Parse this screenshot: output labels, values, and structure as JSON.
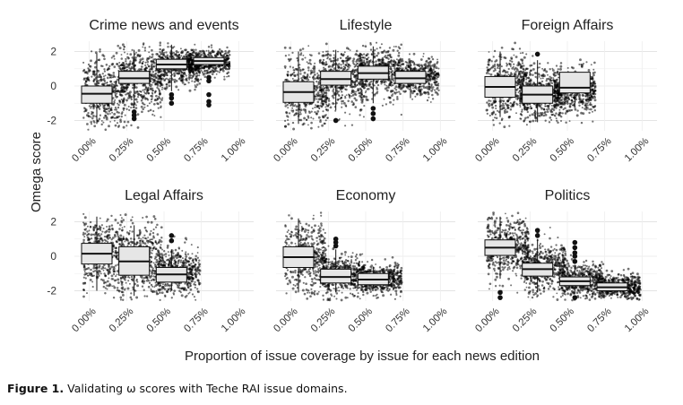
{
  "caption": {
    "label": "Figure 1.",
    "text": "Validating ω scores with Teche RAI issue domains."
  },
  "chart_data": {
    "type": "box",
    "ylabel": "Omega score",
    "xlabel": "Proportion of issue coverage by issue for each news edition",
    "x_ticks": [
      "0.00%",
      "0.25%",
      "0.50%",
      "0.75%",
      "1.00%"
    ],
    "x_tick_values": [
      0.0,
      0.25,
      0.5,
      0.75,
      1.0
    ],
    "y_ticks": [
      2,
      0,
      -2
    ],
    "ylim": [
      -2.6,
      2.6
    ],
    "xlim": [
      -0.1,
      1.1
    ],
    "panels": [
      {
        "title": "Crime news and events",
        "boxes": [
          {
            "x": 0.05,
            "q1": -1.0,
            "median": -0.45,
            "q3": 0.0,
            "whisker_low": -2.2,
            "whisker_high": 1.9,
            "outliers": []
          },
          {
            "x": 0.3,
            "q1": 0.15,
            "median": 0.45,
            "q3": 0.85,
            "whisker_low": -1.3,
            "whisker_high": 2.1,
            "outliers": [
              -1.5,
              -1.7,
              -1.9
            ]
          },
          {
            "x": 0.55,
            "q1": 1.0,
            "median": 1.25,
            "q3": 1.55,
            "whisker_low": -0.3,
            "whisker_high": 2.4,
            "outliers": [
              -0.5,
              -0.7,
              -1.0
            ]
          },
          {
            "x": 0.8,
            "q1": 1.25,
            "median": 1.45,
            "q3": 1.65,
            "whisker_low": 1.0,
            "whisker_high": 2.0,
            "outliers": [
              0.5,
              0.3,
              -0.5,
              -0.9,
              -1.1
            ]
          }
        ],
        "scatter_spread": [
          [
            0.0,
            -0.3,
            1.1
          ],
          [
            0.25,
            0.4,
            0.9
          ],
          [
            0.5,
            1.2,
            0.55
          ],
          [
            0.7,
            1.4,
            0.35
          ]
        ]
      },
      {
        "title": "Lifestyle",
        "boxes": [
          {
            "x": 0.05,
            "q1": -0.95,
            "median": -0.35,
            "q3": 0.25,
            "whisker_low": -2.2,
            "whisker_high": 2.0,
            "outliers": []
          },
          {
            "x": 0.3,
            "q1": 0.05,
            "median": 0.4,
            "q3": 0.85,
            "whisker_low": -1.4,
            "whisker_high": 2.1,
            "outliers": [
              -2.0
            ]
          },
          {
            "x": 0.55,
            "q1": 0.4,
            "median": 0.75,
            "q3": 1.15,
            "whisker_low": -1.0,
            "whisker_high": 2.3,
            "outliers": [
              -1.3,
              -1.6,
              -1.9
            ]
          },
          {
            "x": 0.8,
            "q1": 0.15,
            "median": 0.45,
            "q3": 0.85,
            "whisker_low": -0.7,
            "whisker_high": 1.5,
            "outliers": []
          }
        ],
        "scatter_spread": [
          [
            0.0,
            -0.3,
            1.1
          ],
          [
            0.25,
            0.4,
            0.9
          ],
          [
            0.5,
            0.8,
            0.7
          ],
          [
            0.75,
            0.5,
            0.5
          ]
        ]
      },
      {
        "title": "Foreign Affairs",
        "boxes": [
          {
            "x": 0.05,
            "q1": -0.65,
            "median": -0.05,
            "q3": 0.55,
            "whisker_low": -1.8,
            "whisker_high": 2.0,
            "outliers": []
          },
          {
            "x": 0.3,
            "q1": -1.0,
            "median": -0.5,
            "q3": 0.0,
            "whisker_low": -2.1,
            "whisker_high": 1.5,
            "outliers": [
              1.85
            ]
          },
          {
            "x": 0.55,
            "q1": -0.4,
            "median": -0.1,
            "q3": 0.8,
            "whisker_low": -1.2,
            "whisker_high": 0.8,
            "outliers": []
          }
        ],
        "scatter_spread": [
          [
            0.0,
            0.0,
            0.9
          ],
          [
            0.22,
            -0.5,
            0.8
          ],
          [
            0.45,
            -0.3,
            0.6
          ]
        ]
      },
      {
        "title": "Legal Affairs",
        "boxes": [
          {
            "x": 0.05,
            "q1": -0.45,
            "median": 0.15,
            "q3": 0.75,
            "whisker_low": -2.0,
            "whisker_high": 2.3,
            "outliers": []
          },
          {
            "x": 0.3,
            "q1": -1.1,
            "median": -0.3,
            "q3": 0.55,
            "whisker_low": -2.3,
            "whisker_high": 1.8,
            "outliers": []
          },
          {
            "x": 0.55,
            "q1": -1.5,
            "median": -1.05,
            "q3": -0.65,
            "whisker_low": -2.0,
            "whisker_high": 0.4,
            "outliers": [
              0.9,
              1.2
            ]
          }
        ],
        "scatter_spread": [
          [
            0.0,
            0.1,
            1.1
          ],
          [
            0.25,
            -0.2,
            1.0
          ],
          [
            0.5,
            -0.9,
            0.6
          ]
        ]
      },
      {
        "title": "Economy",
        "boxes": [
          {
            "x": 0.05,
            "q1": -0.65,
            "median": -0.05,
            "q3": 0.55,
            "whisker_low": -2.1,
            "whisker_high": 2.2,
            "outliers": []
          },
          {
            "x": 0.3,
            "q1": -1.55,
            "median": -1.2,
            "q3": -0.75,
            "whisker_low": -2.1,
            "whisker_high": 0.4,
            "outliers": [
              0.6,
              0.8,
              1.0
            ]
          },
          {
            "x": 0.55,
            "q1": -1.65,
            "median": -1.35,
            "q3": -1.0,
            "whisker_low": -1.9,
            "whisker_high": -0.6,
            "outliers": []
          }
        ],
        "scatter_spread": [
          [
            0.0,
            0.0,
            1.0
          ],
          [
            0.25,
            -1.1,
            0.6
          ],
          [
            0.5,
            -1.3,
            0.4
          ]
        ]
      },
      {
        "title": "Politics",
        "boxes": [
          {
            "x": 0.05,
            "q1": 0.05,
            "median": 0.5,
            "q3": 0.95,
            "whisker_low": -1.3,
            "whisker_high": 2.3,
            "outliers": [
              -2.1,
              -2.4
            ]
          },
          {
            "x": 0.3,
            "q1": -1.15,
            "median": -0.75,
            "q3": -0.4,
            "whisker_low": -2.1,
            "whisker_high": 1.0,
            "outliers": [
              1.2,
              1.5
            ]
          },
          {
            "x": 0.55,
            "q1": -1.7,
            "median": -1.45,
            "q3": -1.2,
            "whisker_low": -2.2,
            "whisker_high": -0.5,
            "outliers": [
              -0.3,
              0.0,
              0.2,
              0.5,
              0.8,
              -2.4
            ]
          },
          {
            "x": 0.8,
            "q1": -2.0,
            "median": -1.8,
            "q3": -1.55,
            "whisker_low": -2.3,
            "whisker_high": -1.3,
            "outliers": []
          }
        ],
        "scatter_spread": [
          [
            0.0,
            0.5,
            0.9
          ],
          [
            0.25,
            -0.7,
            0.7
          ],
          [
            0.5,
            -1.4,
            0.5
          ],
          [
            0.75,
            -1.8,
            0.35
          ]
        ]
      }
    ]
  }
}
